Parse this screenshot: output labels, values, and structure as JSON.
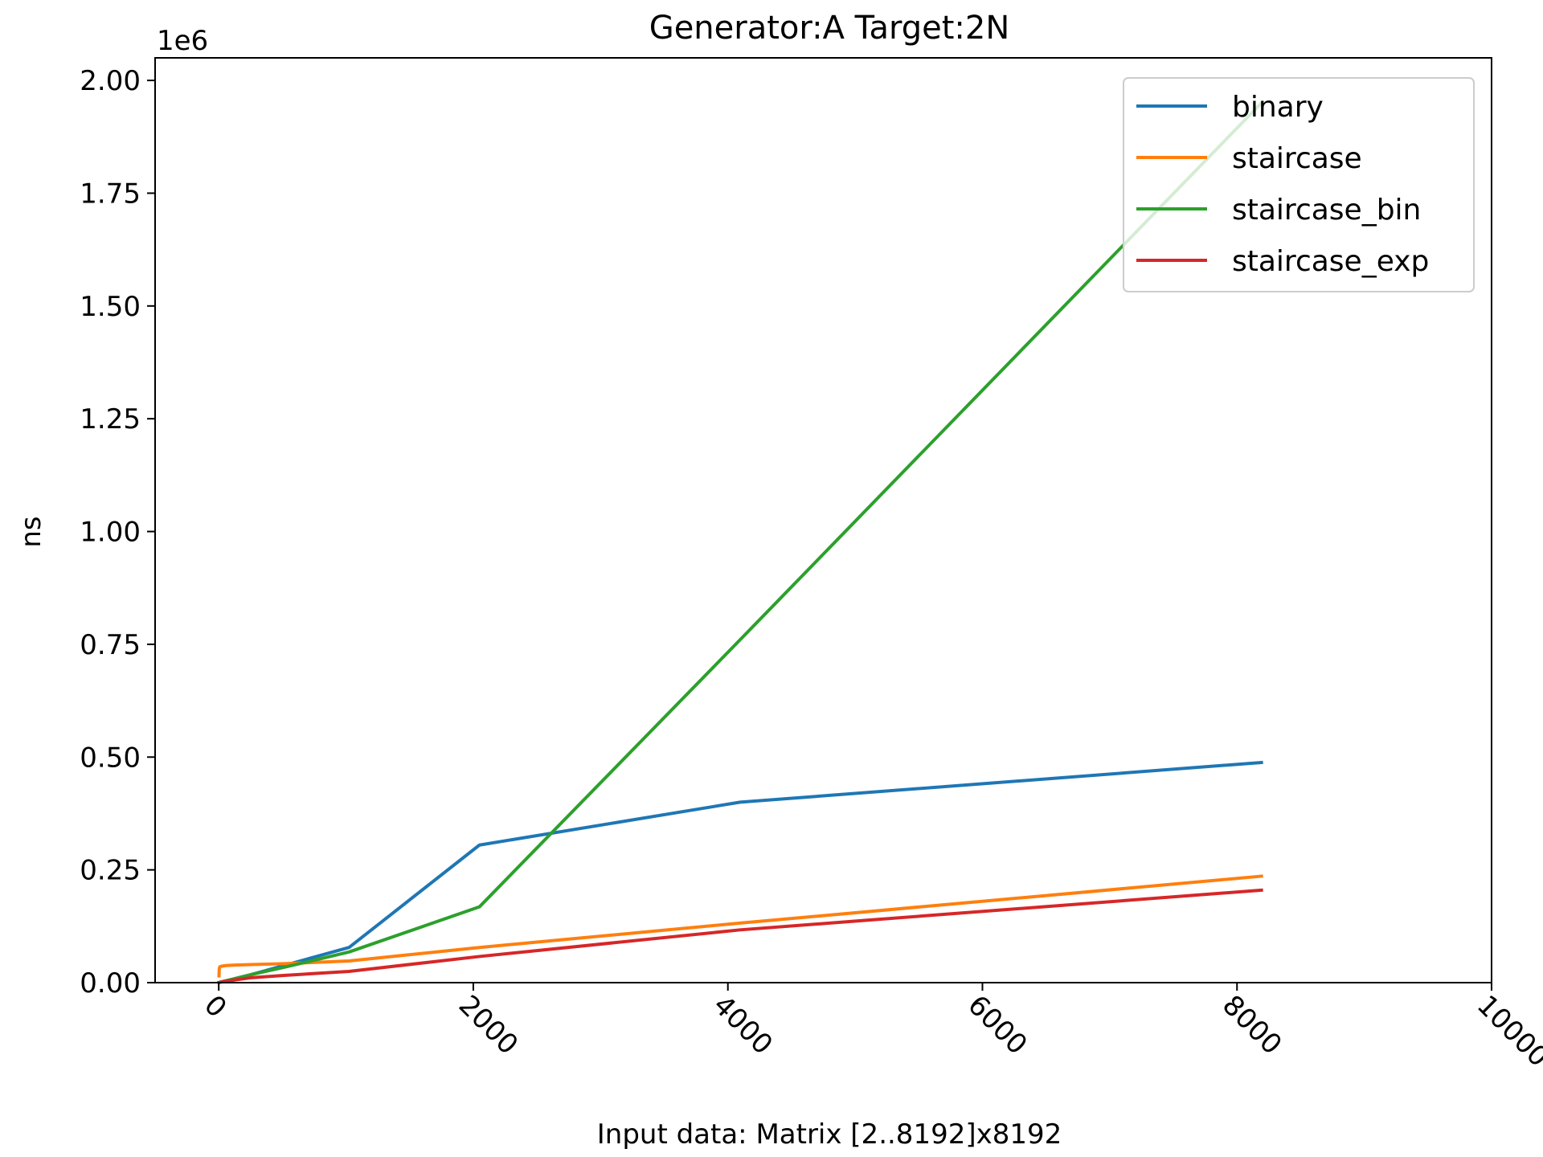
{
  "chart_data": {
    "type": "line",
    "title": "Generator:A Target:2N",
    "xlabel": "Input data: Matrix [2..8192]x8192",
    "ylabel": "ns",
    "y_offset_text": "1e6",
    "xlim": [
      -500,
      10000
    ],
    "ylim": [
      0,
      2050000
    ],
    "x_ticks": [
      0,
      2000,
      4000,
      6000,
      8000,
      10000
    ],
    "x_tick_labels": [
      "0",
      "2000",
      "4000",
      "6000",
      "8000",
      "10000"
    ],
    "y_ticks": [
      0,
      250000,
      500000,
      750000,
      1000000,
      1250000,
      1500000,
      1750000,
      2000000
    ],
    "y_tick_labels": [
      "0.00",
      "0.25",
      "0.50",
      "0.75",
      "1.00",
      "1.25",
      "1.50",
      "1.75",
      "2.00"
    ],
    "grid": false,
    "legend_position": "top-right",
    "series": [
      {
        "name": "binary",
        "color": "#1f77b4",
        "x": [
          2,
          4,
          8,
          16,
          32,
          64,
          128,
          256,
          512,
          1024,
          2048,
          4096,
          8192
        ],
        "y": [
          500,
          700,
          1000,
          1500,
          2500,
          4500,
          9000,
          18000,
          38000,
          78000,
          305000,
          400000,
          488000
        ]
      },
      {
        "name": "staircase",
        "color": "#ff7f0e",
        "x": [
          2,
          4,
          8,
          16,
          32,
          64,
          128,
          256,
          512,
          1024,
          2048,
          4096,
          8192
        ],
        "y": [
          15000,
          30000,
          35000,
          36000,
          37000,
          38000,
          39000,
          40000,
          42000,
          48000,
          78000,
          132000,
          236000
        ]
      },
      {
        "name": "staircase_bin",
        "color": "#2ca02c",
        "x": [
          2,
          4,
          8,
          16,
          32,
          64,
          128,
          256,
          512,
          1024,
          2048,
          4096,
          8192
        ],
        "y": [
          500,
          700,
          1000,
          1500,
          2500,
          4500,
          9000,
          18000,
          34000,
          68000,
          168000,
          760000,
          1950000
        ]
      },
      {
        "name": "staircase_exp",
        "color": "#d62728",
        "x": [
          2,
          4,
          8,
          16,
          32,
          64,
          128,
          256,
          512,
          1024,
          2048,
          4096,
          8192
        ],
        "y": [
          300,
          500,
          800,
          1200,
          2000,
          3500,
          6000,
          11000,
          16000,
          25000,
          58000,
          117000,
          205000
        ]
      }
    ]
  }
}
